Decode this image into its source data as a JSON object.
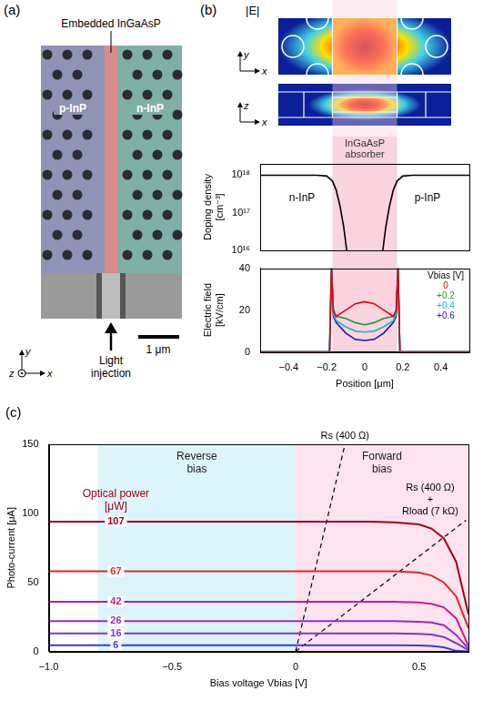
{
  "panel_a": {
    "panel_label": "(a)",
    "annotation": "Embedded InGaAsP",
    "regions": [
      "p-InP",
      "n-InP"
    ],
    "arrow_label": "Light injection",
    "scale_bar": "1 μm",
    "axes": [
      "y",
      "x",
      "z"
    ]
  },
  "panel_b": {
    "panel_label": "(b)",
    "title": "|E|",
    "maps": [
      {
        "axes": [
          "y",
          "x"
        ]
      },
      {
        "axes": [
          "z",
          "x"
        ]
      }
    ]
  },
  "chart_data": [
    {
      "type": "line",
      "y_label": "Doping density [cm⁻³]",
      "x": [
        -0.55,
        -0.25,
        -0.2,
        -0.17,
        -0.15,
        -0.13,
        -0.11,
        -0.095,
        0,
        0.095,
        0.11,
        0.13,
        0.15,
        0.17,
        0.2,
        0.25,
        0.55
      ],
      "values": [
        1e+18,
        1e+18,
        9.5e+17,
        7e+17,
        4e+17,
        1.5e+17,
        4e+16,
        1e+16,
        null,
        1e+16,
        4e+16,
        1.5e+17,
        4e+17,
        7e+17,
        9.5e+17,
        1e+18,
        1e+18
      ],
      "color": "#000000",
      "xlim": [
        -0.55,
        0.55
      ],
      "ylim": [
        1e+16,
        2e+18
      ],
      "yticks": [
        {
          "value": 1e+16,
          "label": "10¹⁶"
        },
        {
          "value": 1e+17,
          "label": "10¹⁷"
        },
        {
          "value": 1e+18,
          "label": "10¹⁸"
        }
      ],
      "log": "y",
      "grid": false,
      "tick_labels": "y",
      "annotations": [
        "n-InP",
        "p-InP"
      ],
      "regions": [
        {
          "label": "InGaAsP absorber",
          "x": [
            -0.17,
            0.17
          ],
          "color": "#f9d3de"
        }
      ]
    },
    {
      "type": "line",
      "x_label": "Position [μm]",
      "y_label": "Electric field [kV/cm]",
      "x": [
        -0.55,
        -0.2,
        -0.185,
        -0.175,
        -0.165,
        -0.15,
        -0.1,
        -0.05,
        0,
        0.05,
        0.1,
        0.15,
        0.165,
        0.175,
        0.185,
        0.2,
        0.55
      ],
      "series": [
        {
          "name": "0",
          "color": "#e0001b",
          "values": [
            0,
            0,
            0,
            40,
            20,
            17,
            20,
            23,
            24,
            23,
            20,
            17,
            20,
            40,
            0,
            0,
            0
          ]
        },
        {
          "name": "+0.2",
          "color": "#1a9a3a",
          "values": [
            0,
            0,
            0,
            40,
            19,
            17,
            16,
            14,
            13,
            14,
            16,
            17,
            19,
            40,
            0,
            0,
            0
          ]
        },
        {
          "name": "+0.4",
          "color": "#22b0d8",
          "values": [
            0,
            0,
            0,
            40,
            18,
            15,
            12,
            10,
            9.5,
            10,
            12,
            15,
            18,
            40,
            0,
            0,
            0
          ]
        },
        {
          "name": "+0.6",
          "color": "#1a1aa0",
          "values": [
            0,
            0,
            0,
            40,
            17,
            14,
            9,
            6,
            5.5,
            6,
            9,
            14,
            17,
            40,
            0,
            0,
            0
          ]
        }
      ],
      "xlim": [
        -0.55,
        0.55
      ],
      "xticks": [
        {
          "value": -0.4,
          "label": "−0.4"
        },
        {
          "value": -0.2,
          "label": "−0.2"
        },
        0,
        0.2,
        0.4
      ],
      "ylim": [
        0,
        40
      ],
      "yticks": [
        0,
        20,
        40
      ],
      "grid": false,
      "legend": "upper right",
      "legend_title": "Vbias [V]",
      "regions": [
        {
          "x": [
            -0.17,
            0.17
          ],
          "color": "#f9d3de"
        }
      ]
    },
    {
      "type": "line",
      "panel_label": "(c)",
      "x_label": "Bias voltage Vbias [V]",
      "y_label": "Photo-current [μA]",
      "x": [
        -1,
        -0.5,
        0,
        0.3,
        0.4,
        0.5,
        0.55,
        0.6,
        0.65,
        0.7
      ],
      "series": [
        {
          "name": "107",
          "color": "#a3001c",
          "values": [
            94,
            94,
            94,
            94,
            93.5,
            92,
            89,
            82,
            65,
            27
          ]
        },
        {
          "name": "67",
          "color": "#e0262e",
          "values": [
            58,
            58,
            58,
            58,
            58,
            57,
            55,
            50,
            40,
            17
          ]
        },
        {
          "name": "42",
          "color": "#c21f8c",
          "values": [
            36,
            36,
            36,
            36,
            36,
            35.5,
            34.5,
            32,
            24,
            4
          ]
        },
        {
          "name": "26",
          "color": "#9a2bb8",
          "values": [
            22,
            22,
            22,
            22,
            22,
            21.5,
            21,
            19,
            12,
            2
          ]
        },
        {
          "name": "16",
          "color": "#7a38d0",
          "values": [
            13,
            13,
            13,
            13,
            13,
            12.8,
            12.3,
            10.5,
            6,
            1
          ]
        },
        {
          "name": "6",
          "color": "#3a3ae0",
          "values": [
            4.5,
            4.5,
            4.5,
            4.5,
            4.5,
            4.4,
            4,
            3,
            0.5,
            0
          ]
        }
      ],
      "legend": "left",
      "legend_title": "Optical power [μW]",
      "xlim": [
        -1,
        0.7
      ],
      "xticks": [
        {
          "value": -1,
          "label": "−1.0"
        },
        {
          "value": -0.5,
          "label": "−0.5"
        },
        0,
        0.5
      ],
      "ylim": [
        0,
        150
      ],
      "yticks": [
        0,
        50,
        100,
        150
      ],
      "grid": false,
      "regions": [
        {
          "label": "Reverse bias",
          "x": [
            -0.8,
            0
          ],
          "color": "#dcf5fa"
        },
        {
          "label": "Forward bias",
          "x": [
            0,
            0.7
          ],
          "color": "#fde3ee"
        }
      ],
      "lines": [
        {
          "label": "Rs (400 Ω)",
          "x": [
            0,
            0.2
          ],
          "y": [
            0,
            150
          ],
          "line_style": "dashed",
          "color": "#000000"
        },
        {
          "label": "Rs (400 Ω) + Rload (7 kΩ)",
          "x": [
            0,
            0.69
          ],
          "y": [
            0,
            95
          ],
          "line_style": "dashed",
          "color": "#000000"
        }
      ]
    }
  ]
}
